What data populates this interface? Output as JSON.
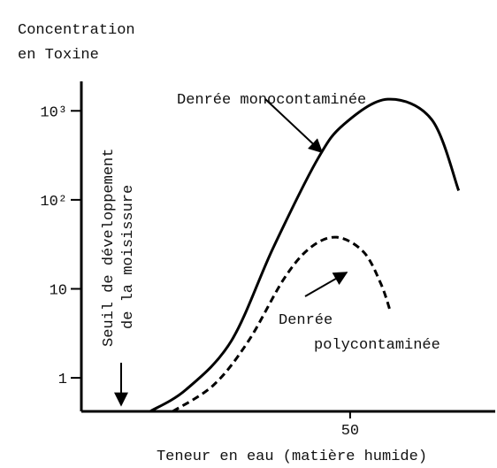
{
  "chart_data": {
    "type": "line",
    "y_label": [
      "Concentration",
      "en Toxine"
    ],
    "x_label": "Teneur en eau (matière humide)",
    "threshold_label": [
      "Seuil de développement",
      "de la moisissure"
    ],
    "threshold_x": 7.4,
    "log_y": true,
    "xlim": [
      0,
      77
    ],
    "xticks": [
      50
    ],
    "ylim": [
      0.42,
      2000
    ],
    "yticks": [
      1,
      10,
      {
        "value": 100,
        "label": "10²"
      },
      {
        "value": 1000,
        "label": "10³"
      }
    ],
    "series": [
      {
        "name": "Denrée monocontaminée",
        "color": "#000000",
        "dash": false,
        "x": [
          12.8,
          19.5,
          27.9,
          35.7,
          43.9,
          48.9,
          57,
          65.2,
          70.2
        ],
        "values": [
          0.42,
          0.74,
          2.6,
          29,
          283,
          710,
          1350,
          795,
          127
        ]
      },
      {
        "name": "Denrée polycontaminée",
        "color": "#000000",
        "dash": true,
        "x": [
          17,
          24.6,
          31.1,
          37.7,
          42.6,
          47.5,
          52.5,
          55.7,
          57.4
        ],
        "values": [
          0.42,
          0.83,
          2.6,
          13,
          29,
          38,
          26,
          11.5,
          5.8
        ]
      }
    ]
  }
}
